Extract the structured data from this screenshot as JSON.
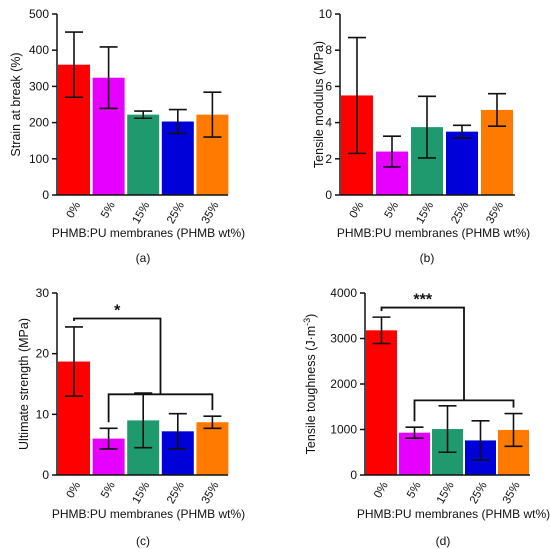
{
  "chart_data": [
    {
      "type": "bar",
      "panel_label": "(a)",
      "categories": [
        "0%",
        "5%",
        "15%",
        "25%",
        "35%"
      ],
      "values": [
        360,
        324,
        222,
        203,
        222
      ],
      "errors": [
        90,
        85,
        10,
        33,
        62
      ],
      "colors": [
        "#ff0000",
        "#e600ff",
        "#1f9a6e",
        "#0000d8",
        "#ff7a00"
      ],
      "ylabel": "Strain at break (%)",
      "xlabel": "PHMB:PU membranes (PHMB wt%)",
      "ylim": [
        0,
        500
      ],
      "yticks": [
        0,
        100,
        200,
        300,
        400,
        500
      ],
      "brackets": []
    },
    {
      "type": "bar",
      "panel_label": "(b)",
      "categories": [
        "0%",
        "5%",
        "15%",
        "25%",
        "35%"
      ],
      "values": [
        5.5,
        2.4,
        3.75,
        3.5,
        4.7
      ],
      "errors": [
        3.2,
        0.85,
        1.7,
        0.35,
        0.9
      ],
      "colors": [
        "#ff0000",
        "#e600ff",
        "#1f9a6e",
        "#0000d8",
        "#ff7a00"
      ],
      "ylabel": "Tensile modulus  (MPa)",
      "xlabel": "PHMB:PU membranes (PHMB wt%)",
      "ylim": [
        0,
        10
      ],
      "yticks": [
        0,
        2,
        4,
        6,
        8,
        10
      ],
      "brackets": []
    },
    {
      "type": "bar",
      "panel_label": "(c)",
      "categories": [
        "0%",
        "5%",
        "15%",
        "25%",
        "35%"
      ],
      "values": [
        18.7,
        6.0,
        9.0,
        7.2,
        8.7
      ],
      "errors": [
        5.7,
        1.7,
        4.5,
        2.9,
        1.0
      ],
      "colors": [
        "#ff0000",
        "#e600ff",
        "#1f9a6e",
        "#0000d8",
        "#ff7a00"
      ],
      "ylabel": "Ultimate strength (MPa)",
      "xlabel": "PHMB:PU membranes (PHMB wt%)",
      "ylim": [
        0,
        30
      ],
      "yticks": [
        0,
        10,
        20,
        30
      ],
      "brackets": [
        {
          "from": 0,
          "to_group": [
            1,
            4
          ],
          "height": 25.8,
          "group_height": 13.3,
          "label": "*"
        }
      ]
    },
    {
      "type": "bar",
      "panel_label": "(d)",
      "categories": [
        "0%",
        "5%",
        "15%",
        "25%",
        "35%"
      ],
      "values": [
        3180,
        930,
        1010,
        760,
        990
      ],
      "errors": [
        290,
        120,
        510,
        430,
        360
      ],
      "colors": [
        "#ff0000",
        "#e600ff",
        "#1f9a6e",
        "#0000d8",
        "#ff7a00"
      ],
      "ylabel_main": "Tensile toughness (J·m",
      "ylabel_sup": "-3",
      "ylabel_end": ")",
      "xlabel": "PHMB:PU membranes (PHMB wt%)",
      "ylim": [
        0,
        4000
      ],
      "yticks": [
        0,
        1000,
        2000,
        3000,
        4000
      ],
      "brackets": [
        {
          "from": 0,
          "to_group": [
            1,
            4
          ],
          "height": 3680,
          "group_height": 1640,
          "label": "***"
        }
      ]
    }
  ]
}
